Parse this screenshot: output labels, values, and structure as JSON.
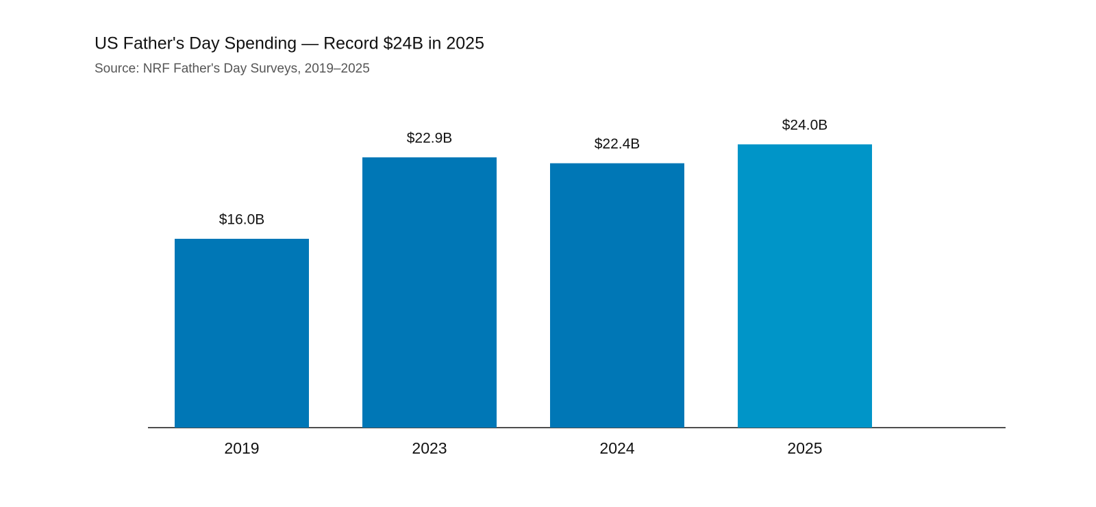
{
  "chart_data": {
    "type": "bar",
    "title": "US Father's Day Spending — Record $24B in 2025",
    "subtitle": "Source: NRF Father's Day Surveys, 2019–2025",
    "categories": [
      "2019",
      "2023",
      "2024",
      "2025"
    ],
    "values": [
      16.0,
      22.9,
      22.4,
      24.0
    ],
    "value_labels": [
      "$16.0B",
      "$22.9B",
      "$22.4B",
      "$24.0B"
    ],
    "colors": [
      "#0077b6",
      "#0077b6",
      "#0077b6",
      "#0095c8"
    ]
  }
}
